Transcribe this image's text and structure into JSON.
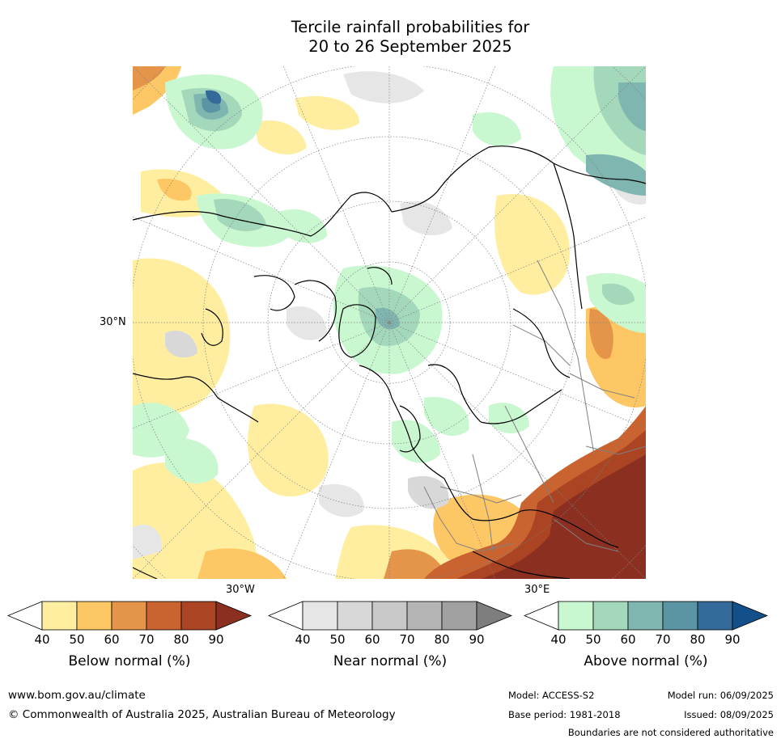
{
  "title": {
    "line1": "Tercile rainfall probabilities for",
    "line2": "20 to 26 September 2025"
  },
  "map": {
    "projection": "north-polar-stereographic",
    "lat_label": "30°N",
    "lon_labels": [
      "30°W",
      "30°E"
    ],
    "layers": [
      "land-water-rainfall-field",
      "coastlines",
      "country-boundaries",
      "graticule"
    ]
  },
  "colorbars": [
    {
      "label": "Below normal (%)",
      "ticks": [
        "40",
        "50",
        "60",
        "70",
        "80",
        "90"
      ],
      "colors": [
        "#ffffff",
        "#ffeea0",
        "#fdc766",
        "#e49549",
        "#c96430",
        "#aa4423",
        "#8b3020"
      ]
    },
    {
      "label": "Near normal (%)",
      "ticks": [
        "40",
        "50",
        "60",
        "70",
        "80",
        "90"
      ],
      "colors": [
        "#ffffff",
        "#e6e6e6",
        "#d8d8d8",
        "#c8c8c8",
        "#b5b5b5",
        "#a0a0a0",
        "#7e7e7e"
      ]
    },
    {
      "label": "Above normal (%)",
      "ticks": [
        "40",
        "50",
        "60",
        "70",
        "80",
        "90"
      ],
      "colors": [
        "#ffffff",
        "#c9f7cf",
        "#a4d8bb",
        "#7fb6b0",
        "#5b94a3",
        "#336a9a",
        "#13508a"
      ]
    }
  ],
  "footer": {
    "website": "www.bom.gov.au/climate",
    "copyright": "© Commonwealth of Australia 2025, Australian Bureau of Meteorology",
    "model": "Model: ACCESS-S2",
    "base_period": "Base period: 1981-2018",
    "model_run": "Model run: 06/09/2025",
    "issued": "Issued: 08/09/2025",
    "disclaimer": "Boundaries are not considered authoritative"
  }
}
